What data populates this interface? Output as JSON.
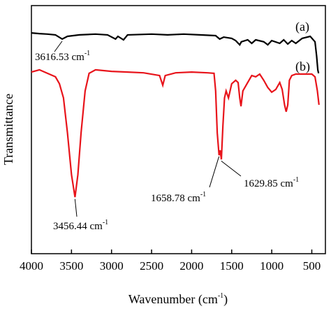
{
  "chart_data": {
    "type": "line",
    "ylabel": "Transmittance",
    "xlabel": {
      "text": "Wavenumber (cm",
      "sup": "-1",
      "end": ")"
    },
    "xlim": [
      4000,
      330
    ],
    "ylim": [
      0,
      100
    ],
    "xticks": [
      4000,
      3500,
      3000,
      2500,
      2000,
      1500,
      1000,
      500
    ],
    "series": [
      {
        "name": "(a)",
        "color": "#000000",
        "x": [
          4000,
          3900,
          3800,
          3700,
          3616,
          3550,
          3400,
          3200,
          3050,
          2950,
          2920,
          2850,
          2800,
          2500,
          2300,
          2100,
          1900,
          1700,
          1650,
          1600,
          1500,
          1450,
          1400,
          1380,
          1300,
          1250,
          1200,
          1100,
          1050,
          1000,
          900,
          850,
          800,
          750,
          700,
          620,
          520,
          460,
          440,
          425,
          415
        ],
        "values": [
          89.0,
          88.7,
          88.5,
          88.2,
          86.5,
          87.6,
          88.2,
          88.5,
          88.2,
          86.5,
          87.6,
          86.2,
          88.2,
          88.5,
          88.2,
          88.5,
          88.2,
          87.9,
          86.5,
          87.3,
          86.8,
          85.9,
          84.2,
          85.4,
          86.2,
          84.8,
          86.2,
          85.4,
          84.2,
          85.9,
          84.8,
          86.2,
          84.5,
          85.9,
          84.8,
          86.8,
          87.6,
          85.4,
          79.7,
          74.1,
          72.7
        ]
      },
      {
        "name": "(b)",
        "color": "#e8141b",
        "x": [
          4000,
          3900,
          3800,
          3700,
          3650,
          3600,
          3550,
          3500,
          3456,
          3420,
          3380,
          3330,
          3280,
          3200,
          3000,
          2800,
          2600,
          2400,
          2360,
          2330,
          2200,
          2000,
          1800,
          1720,
          1700,
          1680,
          1658,
          1645,
          1629,
          1610,
          1590,
          1570,
          1540,
          1500,
          1450,
          1420,
          1400,
          1384,
          1360,
          1300,
          1250,
          1200,
          1150,
          1100,
          1050,
          1000,
          950,
          900,
          870,
          840,
          820,
          800,
          780,
          750,
          700,
          600,
          500,
          460,
          430,
          410
        ],
        "values": [
          73.2,
          74.1,
          72.7,
          71.3,
          68.5,
          62.8,
          48.7,
          31.8,
          22.8,
          31.8,
          48.7,
          65.6,
          72.7,
          74.1,
          73.5,
          73.2,
          72.9,
          71.8,
          67.9,
          71.8,
          72.9,
          73.2,
          72.9,
          72.7,
          65.6,
          48.7,
          39.7,
          41.7,
          38.0,
          51.5,
          62.8,
          65.6,
          62.8,
          68.5,
          69.9,
          69.0,
          62.8,
          59.4,
          65.6,
          69.0,
          71.8,
          71.3,
          72.4,
          69.9,
          67.0,
          65.1,
          66.2,
          69.0,
          66.2,
          60.0,
          57.2,
          60.0,
          69.9,
          71.8,
          72.4,
          72.4,
          72.4,
          71.3,
          65.6,
          60.0
        ]
      }
    ],
    "annotations": [
      {
        "text": "3616.53 cm",
        "sup": "-1",
        "x": 3616.53,
        "series": 0
      },
      {
        "text": "3456.44 cm",
        "sup": "-1",
        "x": 3456.44,
        "series": 1
      },
      {
        "text": "1658.78 cm",
        "sup": "-1",
        "x": 1658.78,
        "series": 1
      },
      {
        "text": "1629.85 cm",
        "sup": "-1",
        "x": 1629.85,
        "series": 1
      }
    ]
  }
}
